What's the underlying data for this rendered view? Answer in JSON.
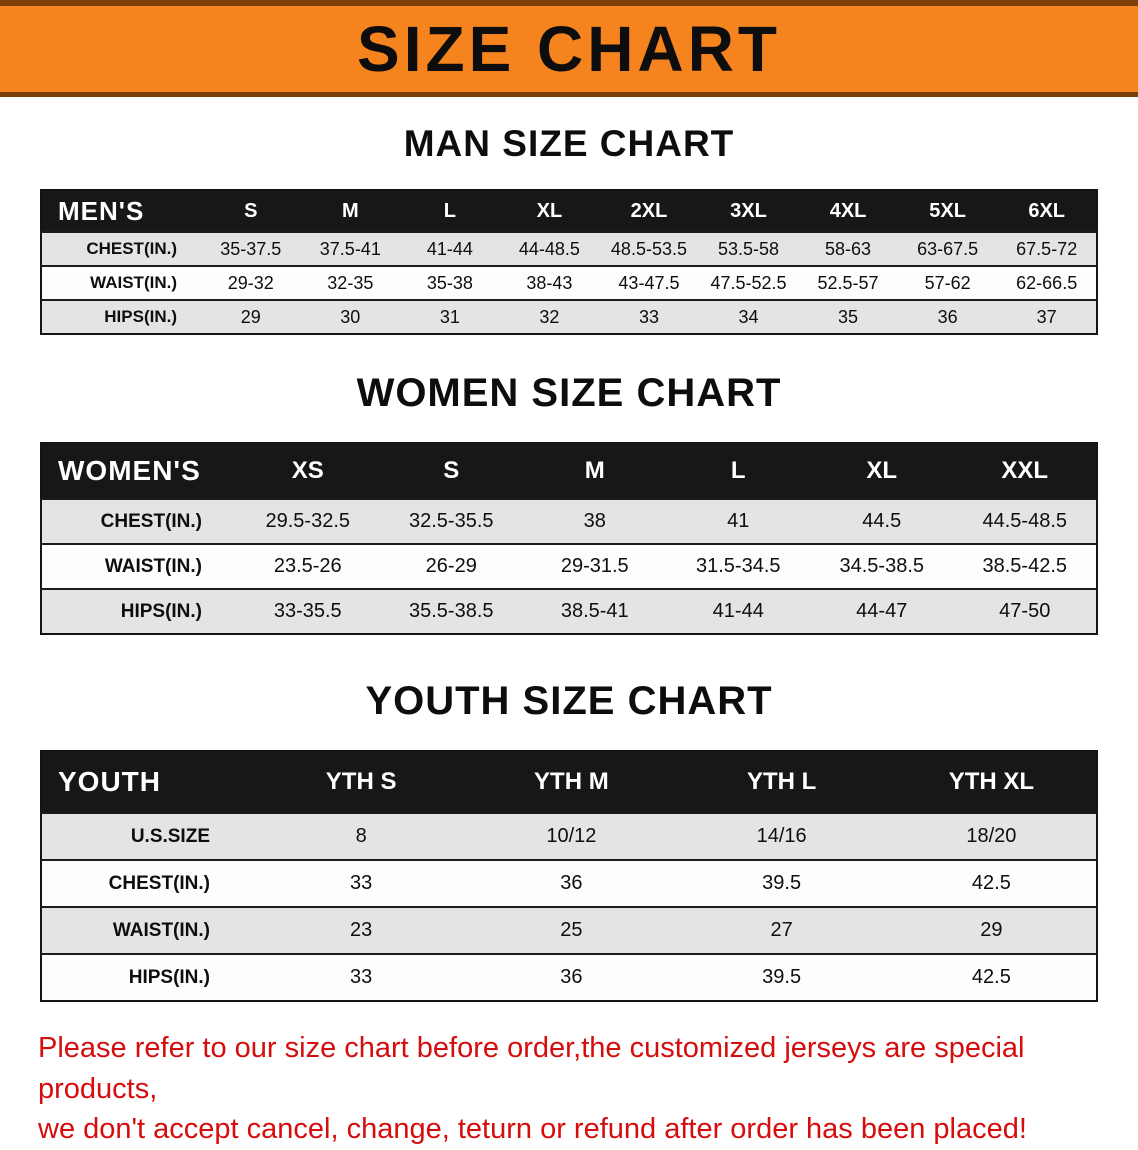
{
  "banner": {
    "title": "SIZE CHART"
  },
  "sections": [
    {
      "id": "men",
      "heading": "MAN SIZE CHART",
      "table": {
        "header": [
          "MEN'S",
          "S",
          "M",
          "L",
          "XL",
          "2XL",
          "3XL",
          "4XL",
          "5XL",
          "6XL"
        ],
        "rows": [
          [
            "CHEST(IN.)",
            "35-37.5",
            "37.5-41",
            "41-44",
            "44-48.5",
            "48.5-53.5",
            "53.5-58",
            "58-63",
            "63-67.5",
            "67.5-72"
          ],
          [
            "WAIST(IN.)",
            "29-32",
            "32-35",
            "35-38",
            "38-43",
            "43-47.5",
            "47.5-52.5",
            "52.5-57",
            "57-62",
            "62-66.5"
          ],
          [
            "HIPS(IN.)",
            "29",
            "30",
            "31",
            "32",
            "33",
            "34",
            "35",
            "36",
            "37"
          ]
        ]
      }
    },
    {
      "id": "women",
      "heading": "WOMEN SIZE CHART",
      "table": {
        "header": [
          "WOMEN'S",
          "XS",
          "S",
          "M",
          "L",
          "XL",
          "XXL"
        ],
        "rows": [
          [
            "CHEST(IN.)",
            "29.5-32.5",
            "32.5-35.5",
            "38",
            "41",
            "44.5",
            "44.5-48.5"
          ],
          [
            "WAIST(IN.)",
            "23.5-26",
            "26-29",
            "29-31.5",
            "31.5-34.5",
            "34.5-38.5",
            "38.5-42.5"
          ],
          [
            "HIPS(IN.)",
            "33-35.5",
            "35.5-38.5",
            "38.5-41",
            "41-44",
            "44-47",
            "47-50"
          ]
        ]
      }
    },
    {
      "id": "youth",
      "heading": "YOUTH SIZE CHART",
      "table": {
        "header": [
          "YOUTH",
          "YTH S",
          "YTH M",
          "YTH L",
          "YTH XL"
        ],
        "rows": [
          [
            "U.S.SIZE",
            "8",
            "10/12",
            "14/16",
            "18/20"
          ],
          [
            "CHEST(IN.)",
            "33",
            "36",
            "39.5",
            "42.5"
          ],
          [
            "WAIST(IN.)",
            "23",
            "25",
            "27",
            "29"
          ],
          [
            "HIPS(IN.)",
            "33",
            "36",
            "39.5",
            "42.5"
          ]
        ]
      }
    }
  ],
  "footer": {
    "line1": "Please refer to our size chart before order,the customized jerseys are special products,",
    "line2": "we don't accept cancel, change, teturn or refund after order has been placed!"
  },
  "colors": {
    "banner_orange": "#f5831e",
    "banner_edge_brown": "#7c4009",
    "header_black": "#171717",
    "stripe_gray": "#e4e4e4",
    "footer_red": "#d60d0d"
  }
}
